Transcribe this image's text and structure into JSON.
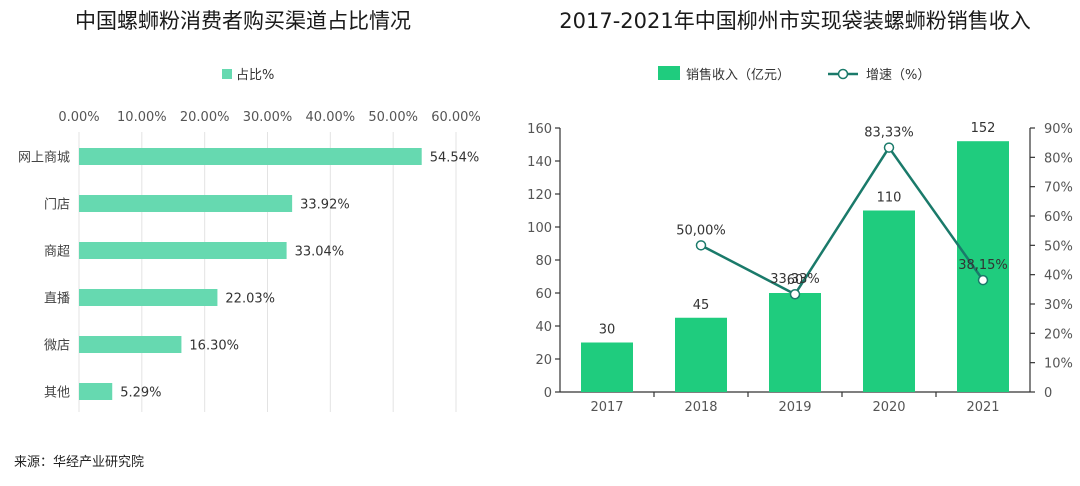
{
  "source": "来源：华经产业研究院",
  "chart_data": [
    {
      "type": "bar",
      "orientation": "horizontal",
      "title": "中国螺蛳粉消费者购买渠道占比情况",
      "legend": [
        "占比%"
      ],
      "legend_position": "top",
      "grid": true,
      "color": "#66d9b0",
      "xlim": [
        0,
        60
      ],
      "xticks": [
        "0.00%",
        "10.00%",
        "20.00%",
        "30.00%",
        "40.00%",
        "50.00%",
        "60.00%"
      ],
      "categories": [
        "网上商城",
        "门店",
        "商超",
        "直播",
        "微店",
        "其他"
      ],
      "values": [
        54.54,
        33.92,
        33.04,
        22.03,
        16.3,
        5.29
      ],
      "labels": [
        "54.54%",
        "33.92%",
        "33.04%",
        "22.03%",
        "16.30%",
        "5.29%"
      ]
    },
    {
      "type": "bar+line",
      "title": "2017-2021年中国柳州市实现袋装螺蛳粉销售收入",
      "legend_position": "top",
      "grid": false,
      "categories": [
        "2017",
        "2018",
        "2019",
        "2020",
        "2021"
      ],
      "series": [
        {
          "name": "销售收入（亿元）",
          "type": "bar",
          "axis": "left",
          "color": "#1fcc7e",
          "values": [
            30,
            45,
            60,
            110,
            152
          ],
          "labels": [
            "30",
            "45",
            "60",
            "110",
            "152"
          ]
        },
        {
          "name": "增速（%）",
          "type": "line",
          "axis": "right",
          "color": "#1a7a6a",
          "values": [
            null,
            50.0,
            33.33,
            83.33,
            38.15
          ],
          "labels": [
            "",
            "50,00%",
            "33,33%",
            "83,33%",
            "38,15%"
          ]
        }
      ],
      "ylim_left": [
        0,
        160
      ],
      "yticks_left": [
        "0",
        "20",
        "40",
        "60",
        "80",
        "100",
        "120",
        "140",
        "160"
      ],
      "ylim_right": [
        0,
        90
      ],
      "yticks_right": [
        "0",
        "10%",
        "20%",
        "30%",
        "40%",
        "50%",
        "60%",
        "70%",
        "80%",
        "90%"
      ]
    }
  ]
}
